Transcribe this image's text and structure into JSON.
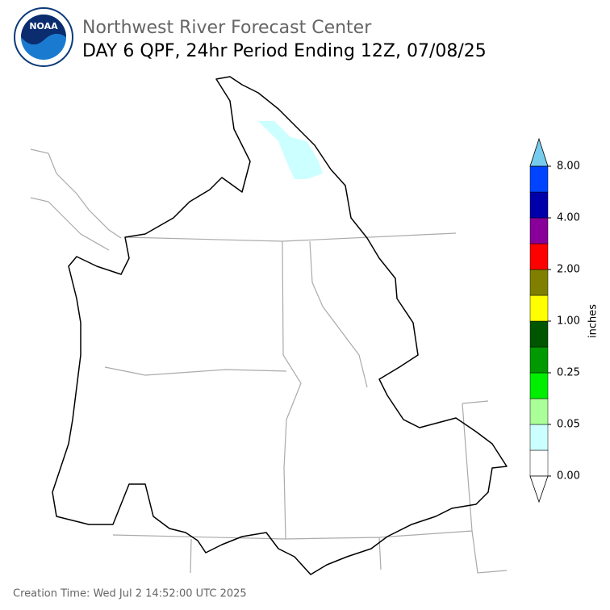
{
  "header": {
    "title": "Northwest River Forecast Center",
    "subtitle": "DAY 6 QPF, 24hr Period Ending 12Z, 07/08/25",
    "logo": "NOAA"
  },
  "footer": {
    "creation_time": "Creation Time: Wed Jul 2 14:52:00 UTC 2025"
  },
  "colorbar": {
    "label": "inches",
    "bounds": [
      0,
      0.01,
      0.05,
      0.1,
      0.25,
      0.5,
      1,
      1.5,
      2,
      3,
      4,
      6,
      8
    ],
    "colors": [
      "#ffffff",
      "#ccffff",
      "#aaff99",
      "#00ee00",
      "#009900",
      "#005500",
      "#ffff00",
      "#808000",
      "#ff0000",
      "#880099",
      "#0000aa",
      "#0044ff"
    ],
    "under_color": "#ffffff",
    "over_color": "#77ccee",
    "ticks": [
      {
        "value": 0,
        "label": "0.00"
      },
      {
        "value": 0.05,
        "label": "0.05"
      },
      {
        "value": 0.25,
        "label": "0.25"
      },
      {
        "value": 1,
        "label": "1.00"
      },
      {
        "value": 2,
        "label": "2.00"
      },
      {
        "value": 4,
        "label": "4.00"
      },
      {
        "value": 8,
        "label": "8.00"
      }
    ]
  }
}
